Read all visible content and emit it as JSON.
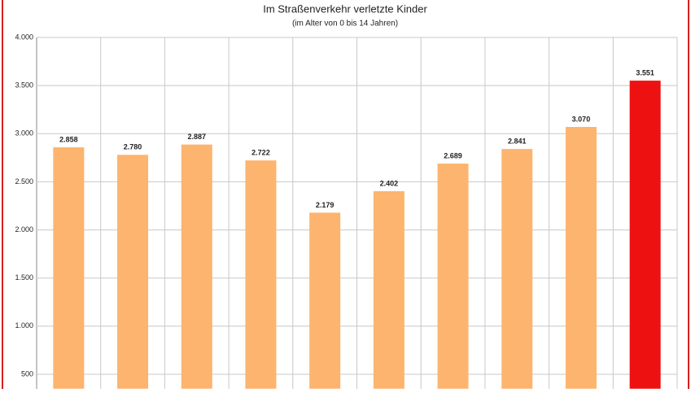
{
  "chart_data": {
    "type": "bar",
    "title": "Im Straßenverkehr verletzte Kinder",
    "subtitle": "(im Alter von 0 bis 14 Jahren)",
    "categories": [
      null,
      null,
      null,
      null,
      null,
      null,
      null,
      null,
      null,
      null
    ],
    "values": [
      2858,
      2780,
      2887,
      2722,
      2179,
      2402,
      2689,
      2841,
      3070,
      3551
    ],
    "value_labels": [
      "2.858",
      "2.780",
      "2.887",
      "2.722",
      "2.179",
      "2.402",
      "2.689",
      "2.841",
      "3.070",
      "3.551"
    ],
    "colors": [
      "#fdb46e",
      "#fdb46e",
      "#fdb46e",
      "#fdb46e",
      "#fdb46e",
      "#fdb46e",
      "#fdb46e",
      "#fdb46e",
      "#fdb46e",
      "#ee1111"
    ],
    "ylim": [
      350,
      4000
    ],
    "yticks": [
      500,
      {
        "value": 1000,
        "label": "1.000"
      },
      {
        "value": 1500,
        "label": "1.500"
      },
      {
        "value": 2000,
        "label": "2.000"
      },
      {
        "value": 2500,
        "label": "2.500"
      },
      {
        "value": 3000,
        "label": "3.000"
      },
      {
        "value": 3500,
        "label": "3.500"
      },
      {
        "value": 4000,
        "label": "4.000"
      }
    ],
    "grid": true
  }
}
